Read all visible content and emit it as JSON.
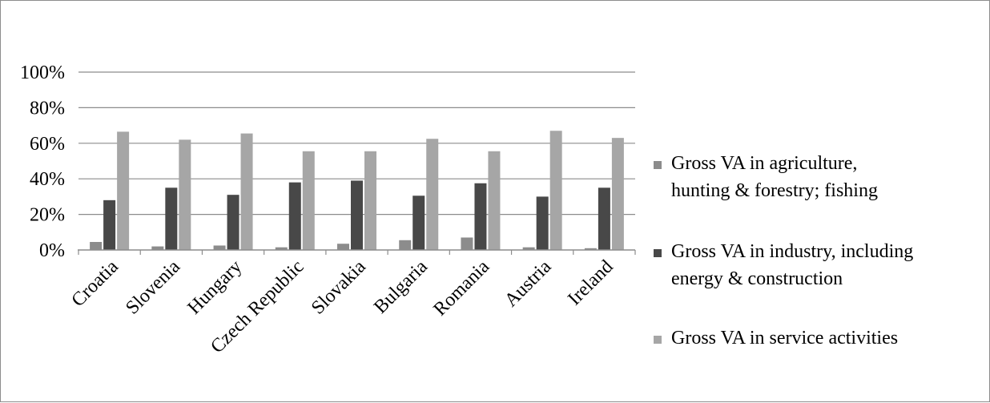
{
  "chart_data": {
    "type": "bar",
    "title": "",
    "xlabel": "",
    "ylabel": "",
    "ylim": [
      0,
      100
    ],
    "y_ticks": [
      "0%",
      "20%",
      "40%",
      "60%",
      "80%",
      "100%"
    ],
    "y_tick_values": [
      0,
      20,
      40,
      60,
      80,
      100
    ],
    "grid": true,
    "legend_position": "right",
    "categories": [
      "Croatia",
      "Slovenia",
      "Hungary",
      "Czech Republic",
      "Slovakia",
      "Bulgaria",
      "Romania",
      "Austria",
      "Ireland"
    ],
    "series": [
      {
        "name": "Gross VA in agriculture, hunting & forestry; fishing",
        "legend_lines": [
          "Gross VA in agriculture,",
          "hunting & forestry; fishing"
        ],
        "color": "#8c8c8c",
        "values": [
          4.5,
          2,
          2.5,
          1.5,
          3.5,
          5.5,
          7,
          1.5,
          1
        ]
      },
      {
        "name": "Gross VA in industry, including energy & construction",
        "legend_lines": [
          "Gross VA in industry, including",
          "energy & construction"
        ],
        "color": "#484848",
        "values": [
          28,
          35,
          31,
          38,
          39,
          30.5,
          37.5,
          30,
          35
        ]
      },
      {
        "name": "Gross VA in service activities",
        "legend_lines": [
          "Gross VA in service activities"
        ],
        "color": "#a6a6a6",
        "values": [
          66.5,
          62,
          65.5,
          55.5,
          55.5,
          62.5,
          55.5,
          67,
          63
        ]
      }
    ]
  }
}
